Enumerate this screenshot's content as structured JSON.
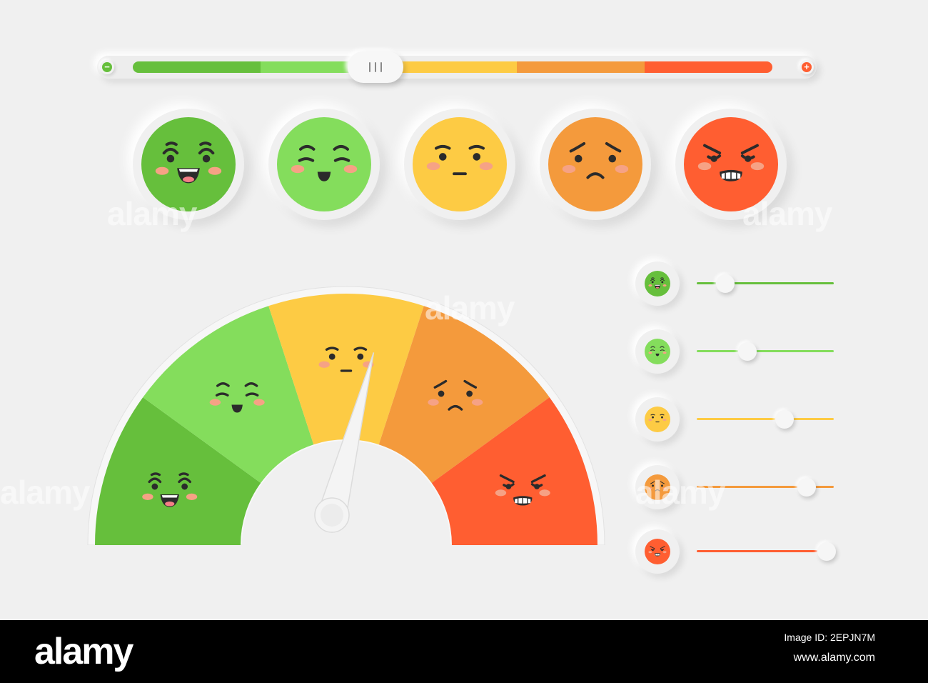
{
  "colors": {
    "dark_green": "#66bf3c",
    "light_green": "#84dd5c",
    "yellow": "#fdcb44",
    "orange": "#f49a3c",
    "red": "#ff5e31",
    "blush": "#f6a285",
    "ink": "#2b2b2b"
  },
  "top_slider": {
    "minus_icon": "minus-icon",
    "plus_icon": "plus-icon",
    "minus_glyph": "−",
    "plus_glyph": "+",
    "value": 0.38
  },
  "faces": [
    {
      "mood": "laughing",
      "color": "#66bf3c"
    },
    {
      "mood": "happy",
      "color": "#84dd5c"
    },
    {
      "mood": "neutral",
      "color": "#fdcb44"
    },
    {
      "mood": "sad",
      "color": "#f49a3c"
    },
    {
      "mood": "angry",
      "color": "#ff5e31"
    }
  ],
  "gauge": {
    "needle_value": 0.58,
    "segments": [
      "#66bf3c",
      "#84dd5c",
      "#fdcb44",
      "#f49a3c",
      "#ff5e31"
    ]
  },
  "rating_rows": [
    {
      "mood": "laughing",
      "color": "#66bf3c",
      "value": 0.21
    },
    {
      "mood": "happy",
      "color": "#84dd5c",
      "value": 0.37
    },
    {
      "mood": "neutral",
      "color": "#fdcb44",
      "value": 0.64
    },
    {
      "mood": "sad",
      "color": "#f49a3c",
      "value": 0.8
    },
    {
      "mood": "angry",
      "color": "#ff5e31",
      "value": 0.95
    }
  ],
  "watermark": {
    "text": "alamy"
  },
  "footer": {
    "brand": "alamy",
    "image_code": "Image ID: 2EPJN7M",
    "site": "www.alamy.com"
  }
}
